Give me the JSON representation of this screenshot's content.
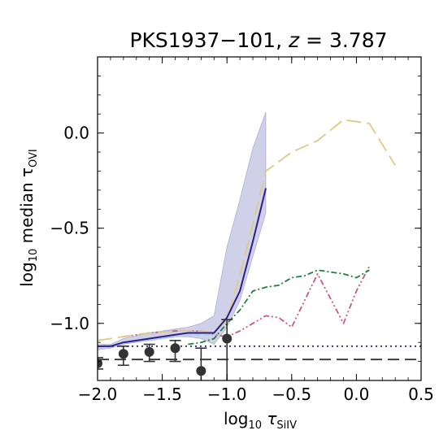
{
  "chart_data": {
    "type": "line",
    "title": {
      "main": "PKS1937−101, ",
      "z_symbol": "z",
      "z_value": " = 3.787"
    },
    "xlabel": {
      "prefix": "log",
      "sub": "10",
      "tau": " τ",
      "tau_sub": "SiIV"
    },
    "ylabel": {
      "prefix": "log",
      "sub": "10",
      "rest": " median τ",
      "tau_sub": "OVI"
    },
    "xlim": [
      -2.0,
      0.5
    ],
    "ylim": [
      -1.3,
      0.4
    ],
    "xticks": [
      -2.0,
      -1.5,
      -1.0,
      -0.5,
      0.0,
      0.5
    ],
    "xtick_labels": [
      "−2.0",
      "−1.5",
      "−1.0",
      "−0.5",
      "0.0",
      "0.5"
    ],
    "yticks": [
      -1.0,
      -0.5,
      0.0
    ],
    "ytick_labels": [
      "−1.0",
      "−0.5",
      "0.0"
    ],
    "grid": false,
    "legend": "none",
    "band": {
      "color": "#7b78c0",
      "x": [
        -2.0,
        -1.9,
        -1.8,
        -1.6,
        -1.4,
        -1.3,
        -1.2,
        -1.1,
        -1.0,
        -0.9,
        -0.8,
        -0.7
      ],
      "lower": [
        -1.14,
        -1.13,
        -1.11,
        -1.09,
        -1.07,
        -1.07,
        -1.08,
        -1.11,
        -1.02,
        -0.88,
        -0.65,
        -0.42
      ],
      "upper": [
        -1.11,
        -1.11,
        -1.08,
        -1.05,
        -1.03,
        -1.02,
        -1.0,
        -0.96,
        -0.6,
        -0.35,
        -0.08,
        0.11
      ]
    },
    "series": [
      {
        "style": "solid",
        "color": "#2c1f8c",
        "x": [
          -2.0,
          -1.9,
          -1.8,
          -1.6,
          -1.4,
          -1.3,
          -1.2,
          -1.1,
          -1.0,
          -0.9,
          -0.8,
          -0.7
        ],
        "y": [
          -1.12,
          -1.12,
          -1.1,
          -1.08,
          -1.06,
          -1.05,
          -1.05,
          -1.05,
          -0.97,
          -0.83,
          -0.57,
          -0.29
        ]
      },
      {
        "style": "dashed",
        "color": "#a9d3e8",
        "x": [
          -2.0,
          -1.8,
          -1.6,
          -1.4,
          -1.2,
          -1.1
        ],
        "y": [
          -1.13,
          -1.1,
          -1.09,
          -1.07,
          -1.06,
          -1.06
        ]
      },
      {
        "style": "longdash",
        "color": "#dccb86",
        "x": [
          -2.0,
          -1.8,
          -1.6,
          -1.4,
          -1.2,
          -1.1,
          -1.0,
          -0.9,
          -0.8,
          -0.7,
          -0.5,
          -0.3,
          -0.1,
          0.1,
          0.3
        ],
        "y": [
          -1.09,
          -1.07,
          -1.05,
          -1.04,
          -1.04,
          -1.05,
          -0.98,
          -0.75,
          -0.48,
          -0.2,
          -0.1,
          -0.04,
          0.07,
          0.05,
          -0.17
        ]
      },
      {
        "style": "dashdot",
        "color": "#1e8238",
        "x": [
          -1.3,
          -1.2,
          -1.1,
          -1.0,
          -0.9,
          -0.8,
          -0.7,
          -0.6,
          -0.5,
          -0.4,
          -0.3,
          -0.2,
          -0.1,
          0.0,
          0.1
        ],
        "y": [
          -1.11,
          -1.1,
          -1.08,
          -1.0,
          -0.93,
          -0.83,
          -0.81,
          -0.8,
          -0.76,
          -0.75,
          -0.72,
          -0.73,
          -0.74,
          -0.76,
          -0.72
        ]
      },
      {
        "style": "dashdotdot",
        "color": "#c45b78",
        "x": [
          -1.8,
          -1.6,
          -1.4,
          -1.2,
          -1.1,
          -1.0,
          -0.9,
          -0.8,
          -0.7,
          -0.6,
          -0.5,
          -0.4,
          -0.3,
          -0.2,
          -0.1,
          0.0,
          0.1
        ],
        "y": [
          -1.07,
          -1.05,
          -1.04,
          -1.04,
          -1.06,
          -1.07,
          -1.04,
          -1.0,
          -0.96,
          -0.97,
          -1.02,
          -0.88,
          -0.74,
          -0.87,
          -1.0,
          -0.83,
          -0.7
        ]
      },
      {
        "style": "dotted",
        "color": "#2c1f8c",
        "x": [
          -2.0,
          0.5
        ],
        "y": [
          -1.12,
          -1.12
        ]
      },
      {
        "style": "hdashed",
        "color": "#333333",
        "x": [
          -2.0,
          0.5
        ],
        "y": [
          -1.19,
          -1.19
        ]
      }
    ],
    "points": {
      "color": "#333333",
      "x": [
        -2.0,
        -1.8,
        -1.6,
        -1.4,
        -1.2,
        -1.0
      ],
      "y": [
        -1.21,
        -1.16,
        -1.15,
        -1.13,
        -1.25,
        -1.08
      ],
      "err_low": [
        0.03,
        0.06,
        0.05,
        0.07,
        0.15,
        0.3
      ],
      "err_high": [
        0.03,
        0.04,
        0.04,
        0.04,
        0.12,
        0.1
      ]
    }
  }
}
